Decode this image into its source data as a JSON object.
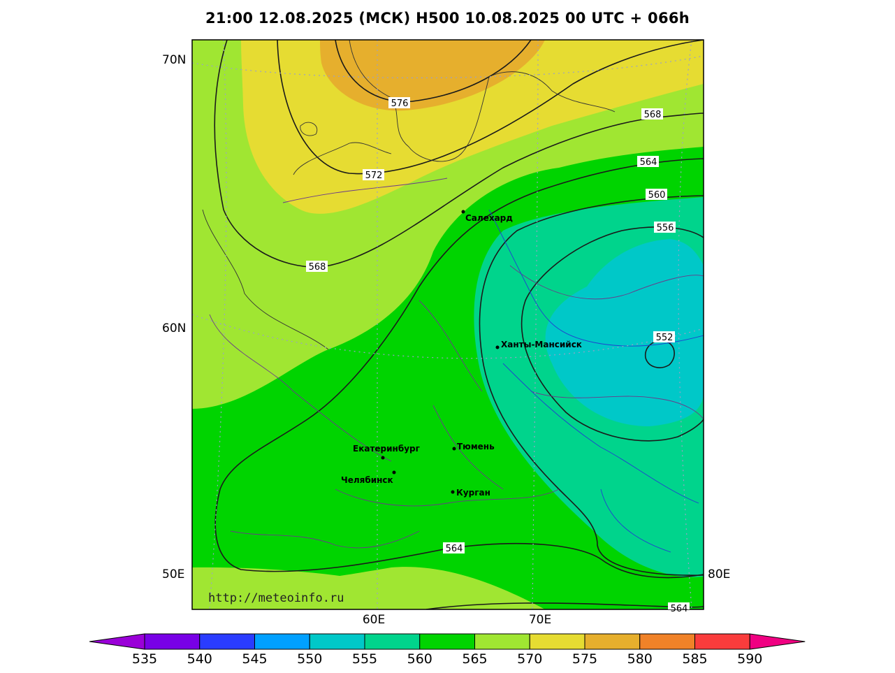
{
  "title": "21:00 12.08.2025 (МСК) H500  10.08.2025 00 UTC + 066h",
  "watermark": "http://meteoinfo.ru",
  "axis_labels": {
    "lat70": "70N",
    "lat60": "60N",
    "lon50": "50E",
    "lon80": "80E",
    "lon60": "60E",
    "lon70": "70E"
  },
  "isolines": {
    "l576": "576",
    "l572": "572",
    "l568a": "568",
    "l568b": "568",
    "l564a": "564",
    "l564b": "564",
    "l564c": "564",
    "l560": "560",
    "l556": "556",
    "l552": "552"
  },
  "cities": {
    "salekhard": "Салехард",
    "khanty": "Ханты-Мансийск",
    "ekaterinburg": "Екатеринбург",
    "tyumen": "Тюмень",
    "chelyabinsk": "Челябинск",
    "kurgan": "Курган"
  },
  "colorbar": {
    "labels": [
      "535",
      "540",
      "545",
      "550",
      "555",
      "560",
      "565",
      "570",
      "575",
      "580",
      "585",
      "590"
    ],
    "colors": [
      "#9a00d8",
      "#7800e6",
      "#2a3cff",
      "#00a0ff",
      "#00c8c8",
      "#00d48c",
      "#00d400",
      "#a0e632",
      "#e6dc32",
      "#e6af2d",
      "#f08228",
      "#fa3c3c",
      "#f00082"
    ]
  },
  "colors": {
    "c565_570": "#a0e632",
    "c570_575": "#e6dc32",
    "c575_580": "#e6af2d",
    "c560_565": "#00d400",
    "c555_560": "#00d48c",
    "c550_555": "#00c8c8"
  }
}
